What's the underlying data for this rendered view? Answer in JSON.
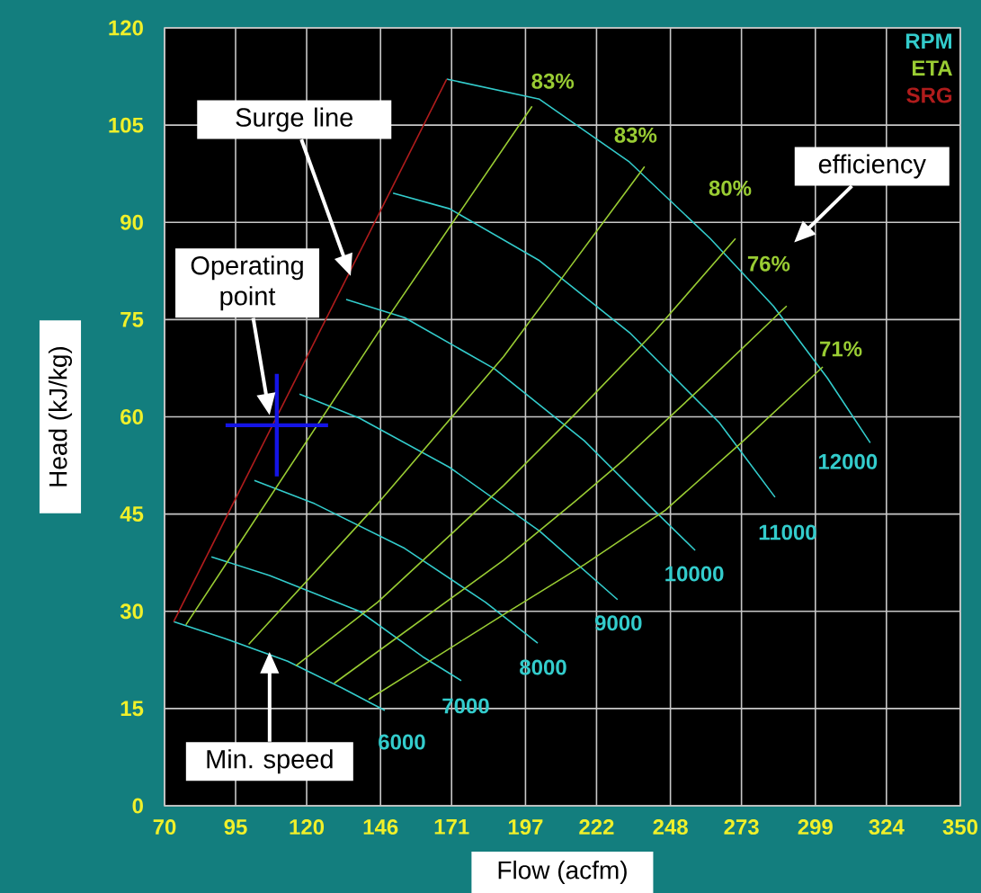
{
  "chart_data": {
    "type": "line",
    "xlabel": "Flow (acfm)",
    "ylabel": "Head (kJ/kg)",
    "xlim": [
      70,
      350
    ],
    "ylim": [
      0,
      120
    ],
    "xticks": [
      70,
      95,
      120,
      146,
      171,
      197,
      222,
      248,
      273,
      299,
      324,
      350
    ],
    "yticks": [
      0,
      15,
      30,
      45,
      60,
      75,
      90,
      105,
      120
    ],
    "grid": true,
    "legend": "top right",
    "series": [
      {
        "name": "RPM",
        "color": "#33cccc",
        "x": [
          73.2,
          91.2,
          113.3,
          132.3,
          147.5
        ],
        "values": [
          28.4,
          25.8,
          22.3,
          18.2,
          14.7
        ]
      },
      {
        "color": "#33cccc",
        "x": [
          86.5,
          107.0,
          138.6,
          160.8,
          174.4
        ],
        "values": [
          38.4,
          35.5,
          30.0,
          23.0,
          19.3
        ]
      },
      {
        "color": "#33cccc",
        "x": [
          101.6,
          122.8,
          154.5,
          182.9,
          201.3
        ],
        "values": [
          50.2,
          46.6,
          39.7,
          31.4,
          25.1
        ]
      },
      {
        "color": "#33cccc",
        "x": [
          117.5,
          138.6,
          170.3,
          201.9,
          229.4
        ],
        "values": [
          63.5,
          59.8,
          52.2,
          42.4,
          31.8
        ]
      },
      {
        "color": "#33cccc",
        "x": [
          133.9,
          154.5,
          186.1,
          217.7,
          239.9,
          256.7
        ],
        "values": [
          78.1,
          75.3,
          67.4,
          56.3,
          46.6,
          39.4
        ]
      },
      {
        "color": "#33cccc",
        "x": [
          150.4,
          170.3,
          201.9,
          233.6,
          265.2,
          284.8
        ],
        "values": [
          94.5,
          92.1,
          84.1,
          73.0,
          59.1,
          47.6
        ]
      },
      {
        "color": "#33cccc",
        "x": [
          169.3,
          201.9,
          233.6,
          262.0,
          284.2,
          303.2,
          318.3
        ],
        "values": [
          112.1,
          109.0,
          99.3,
          87.5,
          77.1,
          66.0,
          56.0
        ]
      },
      {
        "name": "ETA",
        "color": "#99cc33",
        "x": [
          77.5,
          149.2,
          199.3
        ],
        "values": [
          27.9,
          75.7,
          107.9
        ]
      },
      {
        "color": "#99cc33",
        "x": [
          99.6,
          145.0,
          189.3,
          212.0,
          238.9
        ],
        "values": [
          24.9,
          46.6,
          69.3,
          82.7,
          98.6
        ]
      },
      {
        "color": "#99cc33",
        "x": [
          116.2,
          145.0,
          189.3,
          214.6,
          242.1,
          270.9
        ],
        "values": [
          21.6,
          31.4,
          49.4,
          60.5,
          73.0,
          87.5
        ]
      },
      {
        "color": "#99cc33",
        "x": [
          129.7,
          189.3,
          214.6,
          231.4,
          259.8,
          288.9
        ],
        "values": [
          18.9,
          37.9,
          47.0,
          53.3,
          64.9,
          77.1
        ]
      },
      {
        "color": "#99cc33",
        "x": [
          141.8,
          189.3,
          217.7,
          246.2,
          273.7,
          301.6
        ],
        "values": [
          16.4,
          29.5,
          37.2,
          45.6,
          56.3,
          67.7
        ]
      },
      {
        "name": "SRG",
        "color": "#b01c1c",
        "x": [
          73.2,
          169.3
        ],
        "values": [
          28.4,
          112.1
        ]
      },
      {
        "type": "scatter",
        "marker": "cross",
        "color": "#1414e6",
        "x": [
          109.5
        ],
        "values": [
          58.7
        ]
      }
    ],
    "annotations": [
      {
        "text": "6000",
        "x": 147.5,
        "y": 14.7
      },
      {
        "text": "7000",
        "x": 174.4,
        "y": 19.3
      },
      {
        "text": "8000",
        "x": 201.3,
        "y": 25.1
      },
      {
        "text": "9000",
        "x": 229.4,
        "y": 31.8
      },
      {
        "text": "10000",
        "x": 256.7,
        "y": 39.4
      },
      {
        "text": "11000",
        "x": 284.8,
        "y": 47.6
      },
      {
        "text": "12000",
        "x": 318.3,
        "y": 56.0
      },
      {
        "text": "83%",
        "x": 199.3,
        "y": 107.9
      },
      {
        "text": "83%",
        "x": 238.9,
        "y": 98.6
      },
      {
        "text": "80%",
        "x": 270.9,
        "y": 87.5
      },
      {
        "text": "76%",
        "x": 288.9,
        "y": 77.1
      },
      {
        "text": "71%",
        "x": 301.6,
        "y": 67.7
      },
      "Surge line",
      "Operating point",
      "Min. speed",
      "efficiency"
    ]
  }
}
